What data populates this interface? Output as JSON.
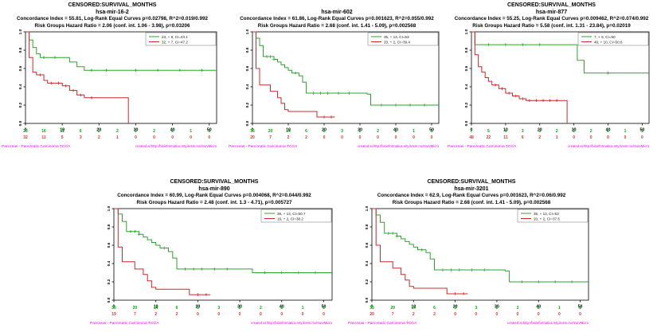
{
  "page": {
    "background": "#ffffff"
  },
  "colors": {
    "curve_green": "#2ca62c",
    "curve_red": "#cc2929",
    "risk_green": "#00a800",
    "risk_red": "#e03030",
    "magenta": "#e800e8",
    "axis": "#000000",
    "legend_border": "#888888"
  },
  "footer": {
    "left": "Pancreas - Pancreatic Carcinoma TCGA",
    "right": "created at http://bioinformatica.mty.itesm.mx/SurvMicro"
  },
  "chart_data": [
    {
      "type": "line",
      "kind": "kaplan-meier-survival",
      "title_lines": [
        "CENSORED:SURVIVAL_MONTHS",
        "hsa-mir-16-2",
        "Concordance Index = 55.81, Log-Rank Equal Curves p=0.02798, R^2=0.019/0.992",
        "Risk Groups Hazard Ratio = 2.06 (conf. int. 1.06 - 3.98), p=0.03206"
      ],
      "xlabel": "",
      "ylabel": "",
      "xlim": [
        0,
        52
      ],
      "ylim": [
        0,
        1
      ],
      "x_ticks": [
        0,
        10,
        20,
        30,
        40,
        50
      ],
      "y_ticks": [
        "0.0",
        "0.2",
        "0.4",
        "0.6",
        "0.8",
        "1.0"
      ],
      "grid": false,
      "legend_position": "top-right",
      "legend": [
        {
          "label": "23, + 8, CI=44.1",
          "color": "green"
        },
        {
          "label": "32, + 7, CI=47.2",
          "color": "red"
        }
      ],
      "series": [
        {
          "name": "low-risk-group",
          "color": "green",
          "steps": [
            [
              0,
              1.0
            ],
            [
              1,
              0.91
            ],
            [
              2,
              0.83
            ],
            [
              3,
              0.76
            ],
            [
              4,
              0.72
            ],
            [
              12,
              0.67
            ],
            [
              14,
              0.62
            ],
            [
              16,
              0.58
            ],
            [
              52,
              0.58
            ]
          ],
          "censors": [
            5,
            8,
            18,
            22,
            30,
            36,
            42,
            48
          ]
        },
        {
          "name": "high-risk-group",
          "color": "red",
          "steps": [
            [
              0,
              1.0
            ],
            [
              1,
              0.72
            ],
            [
              2,
              0.56
            ],
            [
              3,
              0.53
            ],
            [
              5,
              0.47
            ],
            [
              6,
              0.44
            ],
            [
              10,
              0.41
            ],
            [
              12,
              0.36
            ],
            [
              14,
              0.31
            ],
            [
              16,
              0.28
            ],
            [
              28,
              0.0
            ]
          ],
          "censors": [
            4,
            7,
            9,
            11,
            13,
            15,
            18
          ]
        }
      ],
      "at_risk": {
        "times": [
          0,
          5,
          10,
          15,
          20,
          25,
          30,
          35,
          40,
          45,
          50
        ],
        "green": [
          23,
          16,
          11,
          6,
          3,
          2,
          2,
          2,
          2,
          1,
          1
        ],
        "red": [
          32,
          11,
          5,
          3,
          2,
          1,
          0,
          0,
          0,
          0,
          0
        ]
      }
    },
    {
      "type": "line",
      "kind": "kaplan-meier-survival",
      "title_lines": [
        "",
        "hsa-mir-602",
        "Concordance Index = 61.86, Log-Rank Equal Curves p=0.001623, R^2=0.055/0.992",
        "Risk Groups Hazard Ratio = 2.68 (conf. int. 1.41 - 5.09), p=0.002568"
      ],
      "xlabel": "",
      "ylabel": "",
      "xlim": [
        0,
        52
      ],
      "ylim": [
        0,
        1
      ],
      "x_ticks": [
        0,
        10,
        20,
        30,
        40,
        50
      ],
      "y_ticks": [
        "0.0",
        "0.2",
        "0.4",
        "0.6",
        "0.8",
        "1.0"
      ],
      "grid": false,
      "legend_position": "top-right",
      "legend": [
        {
          "label": "35, + 13, CI=53",
          "color": "green"
        },
        {
          "label": "20, + 2, CI=39.4",
          "color": "red"
        }
      ],
      "series": [
        {
          "name": "low-risk-group",
          "color": "green",
          "steps": [
            [
              0,
              1.0
            ],
            [
              1,
              0.93
            ],
            [
              2,
              0.85
            ],
            [
              3,
              0.73
            ],
            [
              6,
              0.7
            ],
            [
              7,
              0.67
            ],
            [
              8,
              0.64
            ],
            [
              9,
              0.61
            ],
            [
              10,
              0.58
            ],
            [
              11,
              0.55
            ],
            [
              13,
              0.52
            ],
            [
              14,
              0.45
            ],
            [
              15,
              0.33
            ],
            [
              32,
              0.32
            ],
            [
              33,
              0.2
            ],
            [
              52,
              0.2
            ]
          ],
          "censors": [
            4,
            5,
            6,
            12,
            17,
            19,
            21,
            24,
            27,
            36,
            40,
            44,
            48
          ]
        },
        {
          "name": "high-risk-group",
          "color": "red",
          "steps": [
            [
              0,
              1.0
            ],
            [
              1,
              0.6
            ],
            [
              2,
              0.42
            ],
            [
              5,
              0.35
            ],
            [
              7,
              0.28
            ],
            [
              8,
              0.22
            ],
            [
              9,
              0.15
            ],
            [
              10,
              0.13
            ],
            [
              18,
              0.07
            ],
            [
              23,
              0.07
            ]
          ],
          "censors": [
            20,
            22
          ]
        }
      ],
      "at_risk": {
        "times": [
          0,
          5,
          10,
          15,
          20,
          25,
          30,
          35,
          40,
          45,
          50
        ],
        "green": [
          35,
          20,
          14,
          6,
          5,
          3,
          2,
          2,
          2,
          1,
          1
        ],
        "red": [
          20,
          7,
          2,
          2,
          0,
          0,
          0,
          0,
          0,
          0,
          0
        ]
      }
    },
    {
      "type": "line",
      "kind": "kaplan-meier-survival",
      "title_lines": [
        "CENSORED:SURVIVAL_MONTHS",
        "hsa-mir-877",
        "Concordance Index = 55.25, Log-Rank Equal Curves p=0.009462, R^2=0.074/0.992",
        "Risk Groups Hazard Ratio = 5.58 (conf. int. 1.31 - 23.84), p=0.02019"
      ],
      "xlabel": "",
      "ylabel": "",
      "xlim": [
        0,
        52
      ],
      "ylim": [
        0,
        1
      ],
      "x_ticks": [
        0,
        10,
        20,
        30,
        40,
        50
      ],
      "y_ticks": [
        "0.0",
        "0.2",
        "0.4",
        "0.6",
        "0.8",
        "1.0"
      ],
      "grid": false,
      "legend_position": "top-right",
      "legend": [
        {
          "label": "7, + 5, CI=50",
          "color": "green"
        },
        {
          "label": "48, + 10, CI=50.6",
          "color": "red"
        }
      ],
      "series": [
        {
          "name": "low-risk-group",
          "color": "green",
          "steps": [
            [
              0,
              1.0
            ],
            [
              1,
              0.86
            ],
            [
              30,
              0.86
            ],
            [
              31,
              0.69
            ],
            [
              33,
              0.55
            ],
            [
              52,
              0.55
            ]
          ],
          "censors": [
            5,
            10,
            15,
            20,
            40
          ]
        },
        {
          "name": "high-risk-group",
          "color": "red",
          "steps": [
            [
              0,
              1.0
            ],
            [
              1,
              0.75
            ],
            [
              2,
              0.62
            ],
            [
              3,
              0.56
            ],
            [
              4,
              0.5
            ],
            [
              5,
              0.46
            ],
            [
              6,
              0.42
            ],
            [
              8,
              0.38
            ],
            [
              10,
              0.33
            ],
            [
              12,
              0.3
            ],
            [
              14,
              0.27
            ],
            [
              16,
              0.25
            ],
            [
              28,
              0.0
            ]
          ],
          "censors": [
            7,
            9,
            11,
            13,
            15,
            17,
            19,
            21,
            23,
            25
          ]
        }
      ],
      "at_risk": {
        "times": [
          0,
          5,
          10,
          15,
          20,
          25,
          30,
          35,
          40,
          45,
          50
        ],
        "green": [
          7,
          5,
          4,
          3,
          3,
          2,
          2,
          2,
          2,
          1,
          1
        ],
        "red": [
          48,
          22,
          11,
          6,
          2,
          1,
          0,
          0,
          0,
          0,
          0
        ]
      }
    },
    {
      "type": "line",
      "kind": "kaplan-meier-survival",
      "title_lines": [
        "CENSORED:SURVIVAL_MONTHS",
        "hsa-mir-890",
        "Concordance Index = 60.99, Log-Rank Equal Curves p=0.004068, R^2=0.044/0.992",
        "Risk Groups Hazard Ratio = 2.48 (conf. int. 1.3 - 4.71), p=0.005727"
      ],
      "xlabel": "",
      "ylabel": "",
      "xlim": [
        0,
        52
      ],
      "ylim": [
        0,
        1
      ],
      "x_ticks": [
        0,
        10,
        20,
        30,
        40,
        50
      ],
      "y_ticks": [
        "0.0",
        "0.2",
        "0.4",
        "0.6",
        "0.8",
        "1.0"
      ],
      "grid": false,
      "legend_position": "top-right",
      "legend": [
        {
          "label": "36, + 13, CI=50.7",
          "color": "green"
        },
        {
          "label": "19, + 2, CI=38.2",
          "color": "red"
        }
      ],
      "series": [
        {
          "name": "low-risk-group",
          "color": "green",
          "steps": [
            [
              0,
              1.0
            ],
            [
              1,
              0.94
            ],
            [
              2,
              0.86
            ],
            [
              3,
              0.75
            ],
            [
              6,
              0.72
            ],
            [
              7,
              0.69
            ],
            [
              8,
              0.66
            ],
            [
              9,
              0.63
            ],
            [
              10,
              0.6
            ],
            [
              11,
              0.57
            ],
            [
              13,
              0.53
            ],
            [
              14,
              0.46
            ],
            [
              15,
              0.34
            ],
            [
              32,
              0.34
            ],
            [
              33,
              0.3
            ],
            [
              52,
              0.3
            ]
          ],
          "censors": [
            4,
            5,
            6,
            12,
            17,
            19,
            21,
            24,
            27,
            36,
            40,
            44,
            48
          ]
        },
        {
          "name": "high-risk-group",
          "color": "red",
          "steps": [
            [
              0,
              1.0
            ],
            [
              1,
              0.58
            ],
            [
              2,
              0.42
            ],
            [
              5,
              0.34
            ],
            [
              7,
              0.28
            ],
            [
              8,
              0.21
            ],
            [
              9,
              0.14
            ],
            [
              10,
              0.12
            ],
            [
              18,
              0.06
            ],
            [
              23,
              0.06
            ]
          ],
          "censors": [
            20,
            22
          ]
        }
      ],
      "at_risk": {
        "times": [
          0,
          5,
          10,
          15,
          20,
          25,
          30,
          35,
          40,
          45,
          50
        ],
        "green": [
          36,
          20,
          14,
          6,
          5,
          3,
          2,
          2,
          2,
          1,
          1
        ],
        "red": [
          19,
          7,
          2,
          2,
          0,
          0,
          0,
          0,
          0,
          0,
          0
        ]
      }
    },
    {
      "type": "line",
      "kind": "kaplan-meier-survival",
      "title_lines": [
        "CENSORED:SURVIVAL_MONTHS",
        "hsa-mir-3201",
        "Concordance Index = 62.9, Log-Rank Equal Curves p=0.001623, R^2=0.06/0.992",
        "Risk Groups Hazard Ratio = 2.68 (conf. int. 1.41 - 5.09), p=0.002568"
      ],
      "xlabel": "",
      "ylabel": "",
      "xlim": [
        0,
        52
      ],
      "ylim": [
        0,
        1
      ],
      "x_ticks": [
        0,
        10,
        20,
        30,
        40,
        50
      ],
      "y_ticks": [
        "0.0",
        "0.2",
        "0.4",
        "0.6",
        "0.8",
        "1.0"
      ],
      "grid": false,
      "legend_position": "top-right",
      "legend": [
        {
          "label": "35, + 13, CI=53",
          "color": "green"
        },
        {
          "label": "20, + 2, CI=37.5",
          "color": "red"
        }
      ],
      "series": [
        {
          "name": "low-risk-group",
          "color": "green",
          "steps": [
            [
              0,
              1.0
            ],
            [
              1,
              0.93
            ],
            [
              2,
              0.85
            ],
            [
              3,
              0.73
            ],
            [
              6,
              0.7
            ],
            [
              7,
              0.67
            ],
            [
              8,
              0.64
            ],
            [
              9,
              0.61
            ],
            [
              10,
              0.58
            ],
            [
              11,
              0.55
            ],
            [
              13,
              0.52
            ],
            [
              14,
              0.45
            ],
            [
              15,
              0.33
            ],
            [
              32,
              0.32
            ],
            [
              33,
              0.2
            ],
            [
              52,
              0.2
            ]
          ],
          "censors": [
            4,
            5,
            6,
            12,
            17,
            19,
            21,
            24,
            27,
            36,
            40,
            44,
            48
          ]
        },
        {
          "name": "high-risk-group",
          "color": "red",
          "steps": [
            [
              0,
              1.0
            ],
            [
              1,
              0.6
            ],
            [
              2,
              0.42
            ],
            [
              5,
              0.35
            ],
            [
              7,
              0.28
            ],
            [
              8,
              0.22
            ],
            [
              9,
              0.15
            ],
            [
              10,
              0.13
            ],
            [
              18,
              0.07
            ],
            [
              23,
              0.07
            ]
          ],
          "censors": [
            20,
            22
          ]
        }
      ],
      "at_risk": {
        "times": [
          0,
          5,
          10,
          15,
          20,
          25,
          30,
          35,
          40,
          45,
          50
        ],
        "green": [
          35,
          20,
          14,
          6,
          5,
          3,
          2,
          2,
          2,
          1,
          1
        ],
        "red": [
          20,
          7,
          2,
          2,
          0,
          0,
          0,
          0,
          0,
          0,
          0
        ]
      }
    }
  ]
}
